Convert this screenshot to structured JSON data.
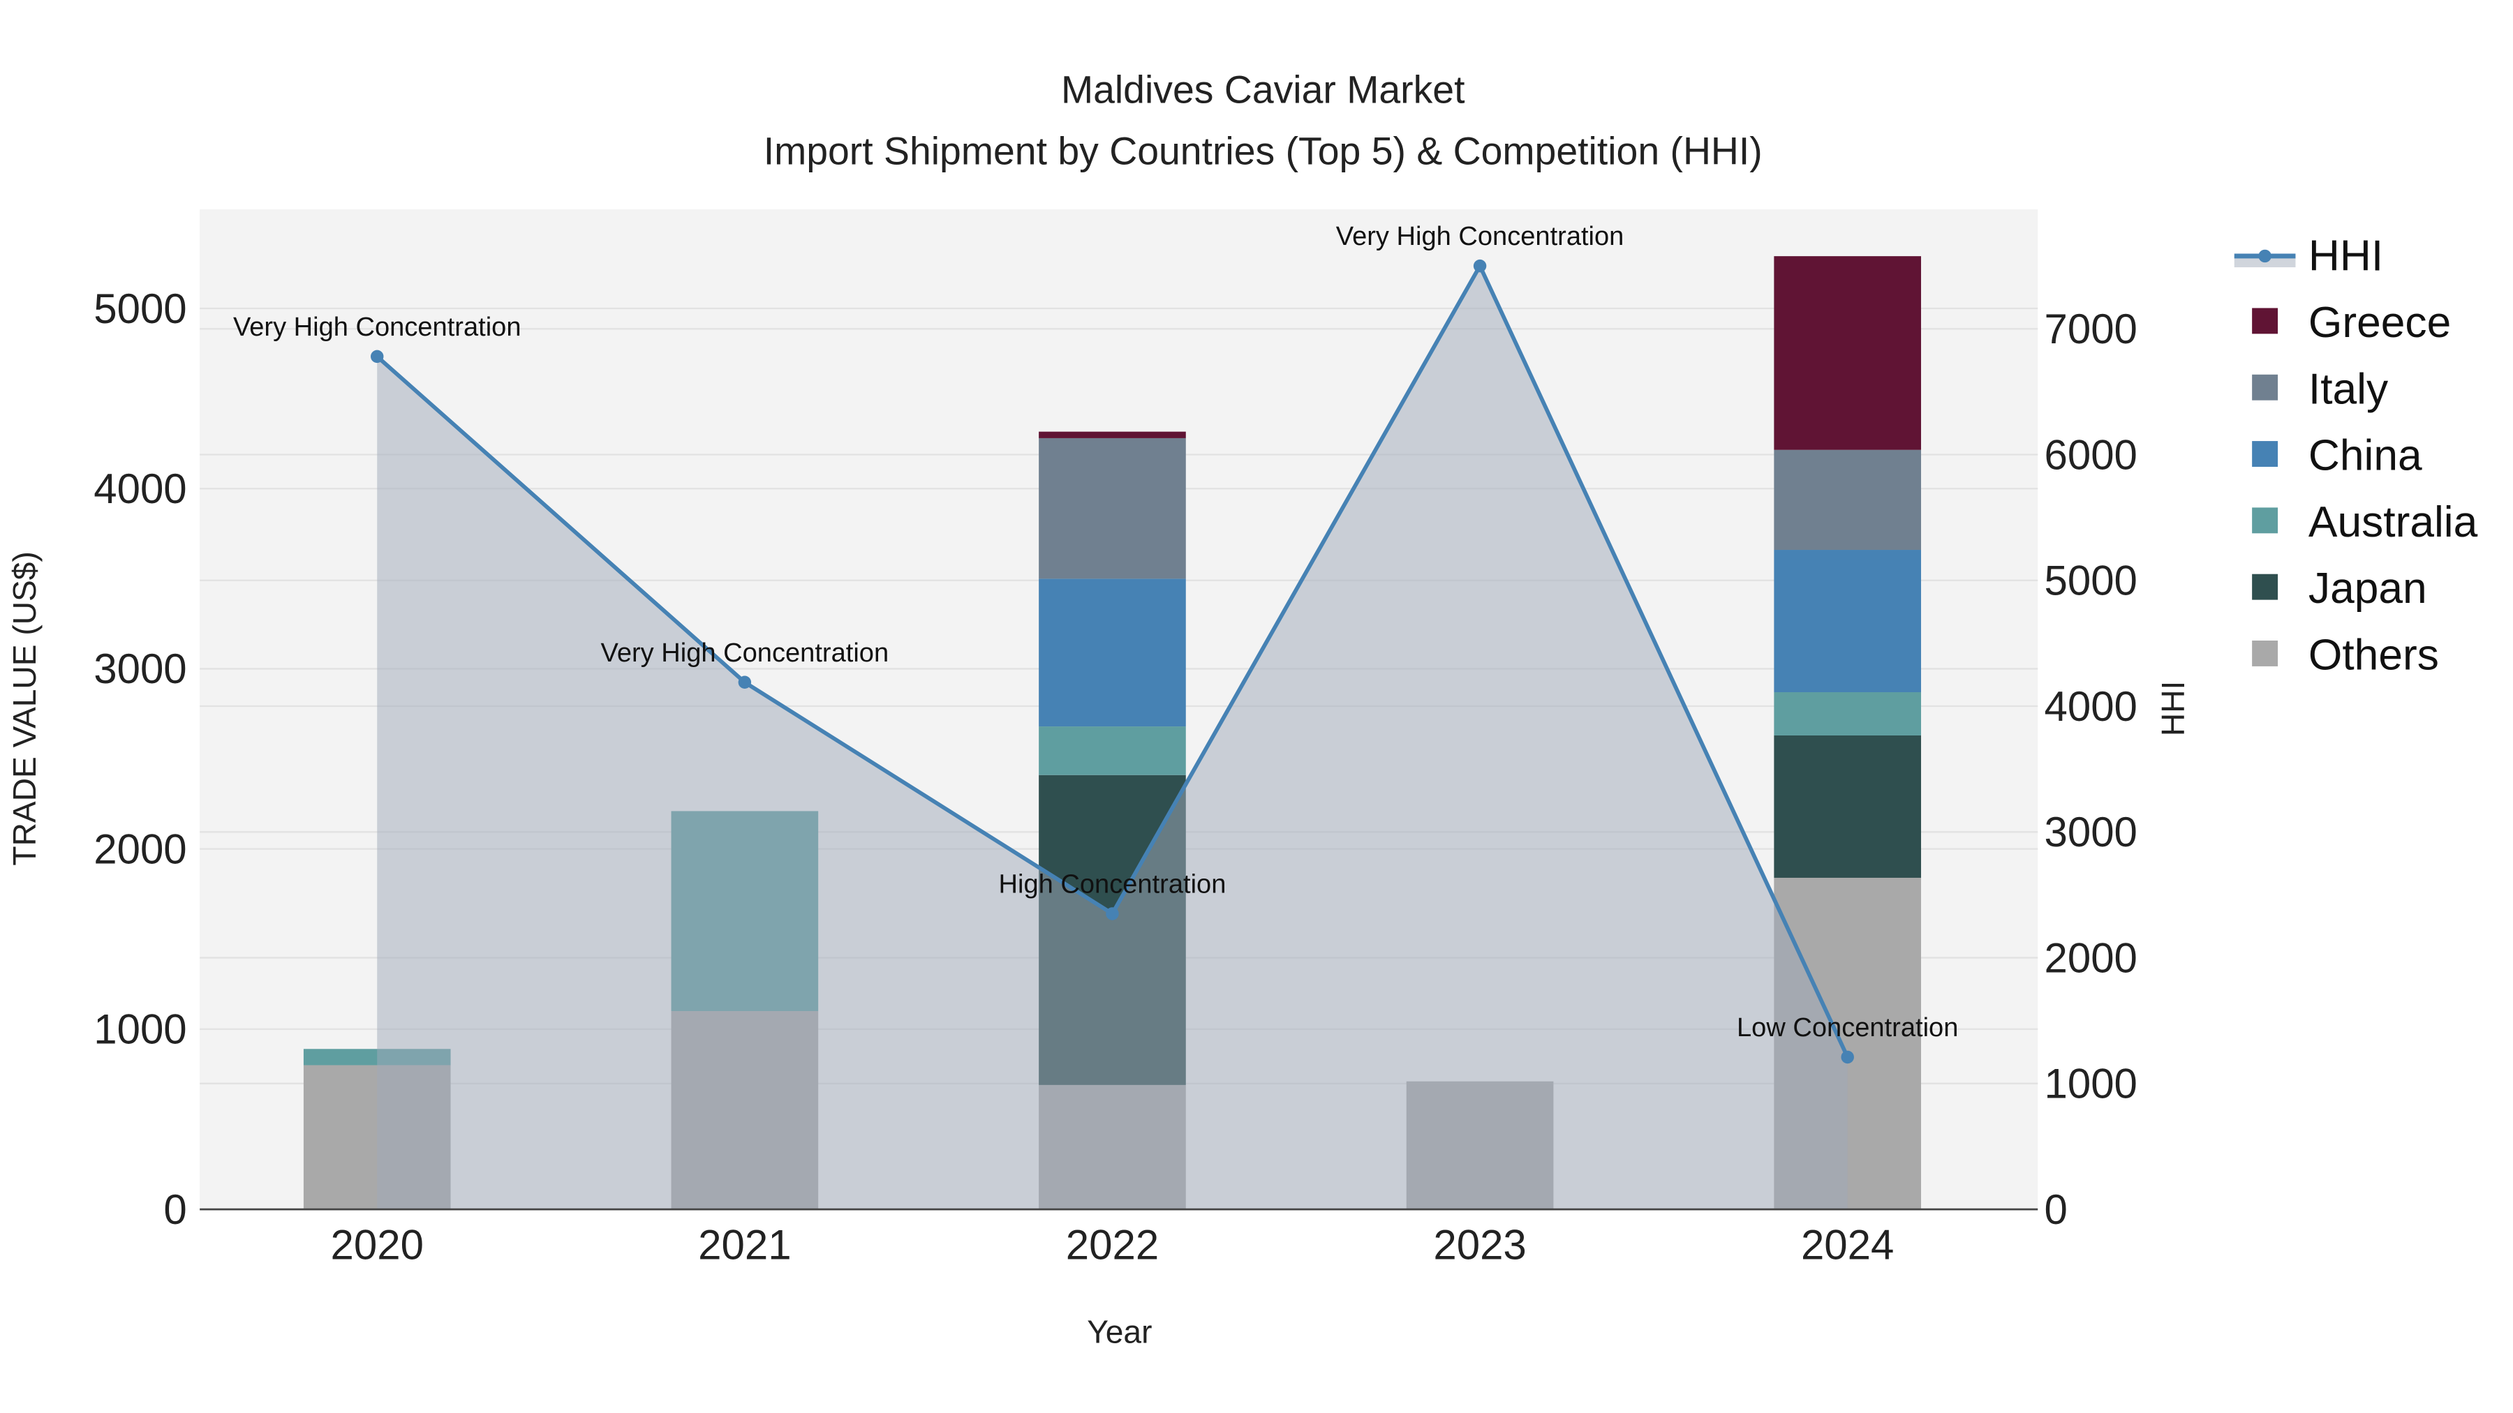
{
  "chart_data": {
    "type": "bar",
    "title": "Maldives Caviar Market",
    "subtitle": "Import Shipment by Countries (Top 5) & Competition (HHI)",
    "xlabel": "Year",
    "ylabel": "TRADE VALUE (US$)",
    "y2label": "HHI",
    "categories": [
      "2020",
      "2021",
      "2022",
      "2023",
      "2024"
    ],
    "ylim": [
      0,
      5550
    ],
    "y2lim": [
      0,
      7950
    ],
    "yticks": [
      "0",
      "1000",
      "2000",
      "3000",
      "4000",
      "5000"
    ],
    "y2ticks": [
      "0",
      "1000",
      "2000",
      "3000",
      "4000",
      "5000",
      "6000",
      "7000"
    ],
    "grid": true,
    "legend_position": "right",
    "series": [
      {
        "name": "Others",
        "color": "#a9a9a9",
        "values": [
          800,
          1100,
          690,
          710,
          1840
        ]
      },
      {
        "name": "Japan",
        "color": "#2f4f4f",
        "values": [
          0,
          0,
          1720,
          0,
          790
        ]
      },
      {
        "name": "Australia",
        "color": "#5f9ea0",
        "values": [
          90,
          1110,
          270,
          0,
          240
        ]
      },
      {
        "name": "China",
        "color": "#4682b4",
        "values": [
          0,
          0,
          820,
          0,
          790
        ]
      },
      {
        "name": "Italy",
        "color": "#708090",
        "values": [
          0,
          0,
          780,
          0,
          555
        ]
      },
      {
        "name": "Greece",
        "color": "#601434",
        "values": [
          0,
          0,
          36,
          0,
          1075
        ]
      }
    ],
    "hhi": {
      "name": "HHI",
      "color": "#4682b4",
      "values": [
        6780,
        4190,
        2350,
        7500,
        1210
      ],
      "annotations": [
        "Very High Concentration",
        "Very High Concentration",
        "High Concentration",
        "Very High Concentration",
        "Low Concentration"
      ]
    },
    "legend": [
      "HHI",
      "Greece",
      "Italy",
      "China",
      "Australia",
      "Japan",
      "Others"
    ]
  }
}
